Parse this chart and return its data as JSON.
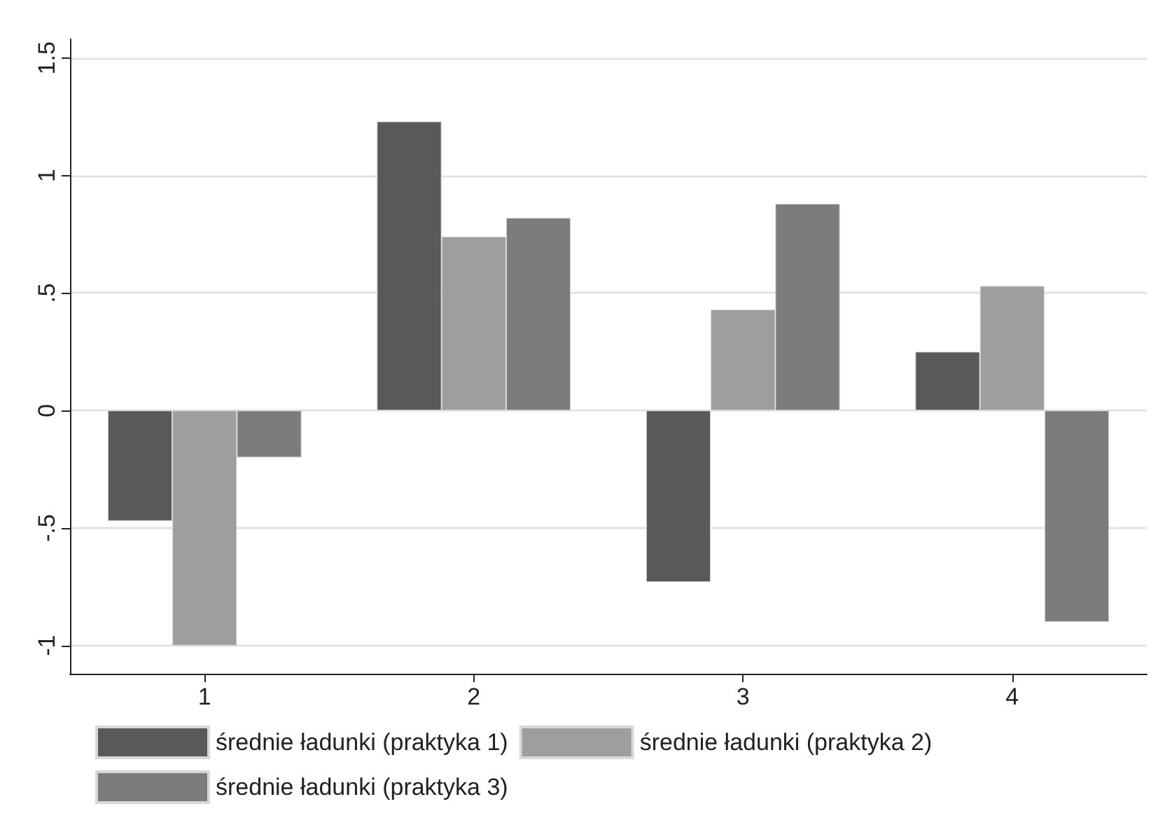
{
  "chart_data": {
    "type": "bar",
    "categories": [
      "1",
      "2",
      "3",
      "4"
    ],
    "series": [
      {
        "name": "średnie ładunki (praktyka 1)",
        "color": "#595957",
        "values": [
          -0.47,
          1.23,
          -0.73,
          0.25
        ]
      },
      {
        "name": "średnie ładunki (praktyka 2)",
        "color": "#9e9e9c",
        "values": [
          -1.0,
          0.74,
          0.43,
          0.53
        ]
      },
      {
        "name": "średnie ładunki (praktyka 3)",
        "color": "#7c7c7a",
        "values": [
          -0.2,
          0.82,
          0.88,
          -0.9
        ]
      }
    ],
    "ylim": [
      -1.12,
      1.58
    ],
    "yticks": [
      {
        "value": -1,
        "label": "-1"
      },
      {
        "value": -0.5,
        "label": "-.5"
      },
      {
        "value": 0,
        "label": "0"
      },
      {
        "value": 0.5,
        "label": ".5"
      },
      {
        "value": 1,
        "label": "1"
      },
      {
        "value": 1.5,
        "label": "1.5"
      }
    ],
    "grid": "y",
    "legend": "bottom"
  }
}
